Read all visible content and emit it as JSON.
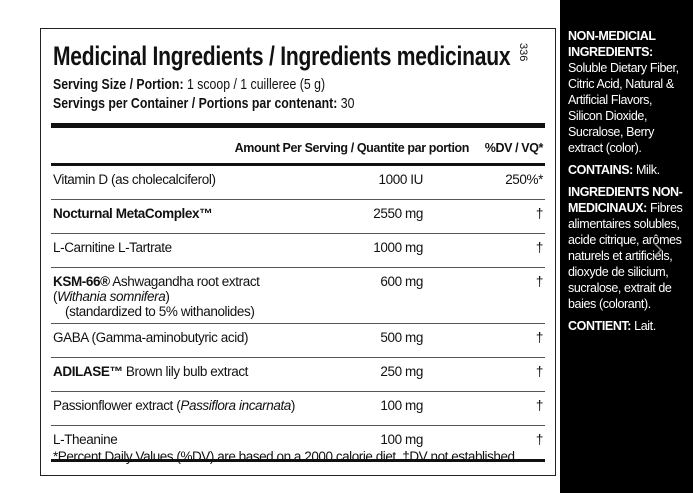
{
  "panel": {
    "title": "Medicinal Ingredients / Ingredients medicinaux",
    "side_code": "336",
    "serving_size": {
      "label": "Serving Size / Portion:",
      "value": "1 scoop / 1 cuilleree (5 g)"
    },
    "servings_per_container": {
      "label": "Servings per Container / Portions par contenant:",
      "value": "30"
    },
    "table": {
      "header": {
        "amount": "Amount Per Serving / Quantite par portion",
        "dv": "%DV / VQ*"
      },
      "rows": [
        {
          "name": [
            {
              "text": "Vitamin D (as cholecalciferol)",
              "style": "n"
            }
          ],
          "amount": "1000 IU",
          "dv": "250%*"
        },
        {
          "name": [
            {
              "text": "Nocturnal MetaComplex™",
              "style": "b"
            }
          ],
          "amount": "2550 mg",
          "dv": "†"
        },
        {
          "name": [
            {
              "text": "L-Carnitine L-Tartrate",
              "style": "n"
            }
          ],
          "amount": "1000 mg",
          "dv": "†"
        },
        {
          "name": [
            {
              "text": "KSM-66®",
              "style": "b"
            },
            {
              "text": " Ashwagandha root extract (",
              "style": "n"
            },
            {
              "text": "Withania somnifera",
              "style": "i"
            },
            {
              "text": ")",
              "style": "n"
            }
          ],
          "note": "(standardized to 5% withanolides)",
          "amount": "600 mg",
          "dv": "†"
        },
        {
          "name": [
            {
              "text": "GABA (Gamma-aminobutyric acid)",
              "style": "n"
            }
          ],
          "amount": "500 mg",
          "dv": "†"
        },
        {
          "name": [
            {
              "text": "ADILASE™",
              "style": "b"
            },
            {
              "text": " Brown lily bulb extract",
              "style": "n"
            }
          ],
          "amount": "250 mg",
          "dv": "†"
        },
        {
          "name": [
            {
              "text": "Passionflower extract (",
              "style": "n"
            },
            {
              "text": "Passiflora incarnata",
              "style": "i"
            },
            {
              "text": ")",
              "style": "n"
            }
          ],
          "amount": "100 mg",
          "dv": "†"
        },
        {
          "name": [
            {
              "text": "L-Theanine",
              "style": "n"
            }
          ],
          "amount": "100 mg",
          "dv": "†"
        }
      ],
      "footnote": "*Percent Daily Values (%DV) are based on a 2000 calorie diet. †DV not established."
    }
  },
  "side": [
    {
      "heading": "NON-MEDICIAL INGREDIENTS:",
      "text": "Soluble Dietary Fiber, Citric Acid, Natural & Artificial Flavors, Silicon Dioxide, Sucralose, Berry extract (color)."
    },
    {
      "heading": "CONTAINS:",
      "text": "Milk."
    },
    {
      "heading": "INGREDIENTS NON-MEDICINAUX:",
      "text": "Fibres alimentaires solubles, acide citrique, arômes naturels et artificiels, dioxyde de silicium, sucralose, extrait de baies (colorant)."
    },
    {
      "heading": "CONTIENT:",
      "text": "Lait."
    }
  ]
}
